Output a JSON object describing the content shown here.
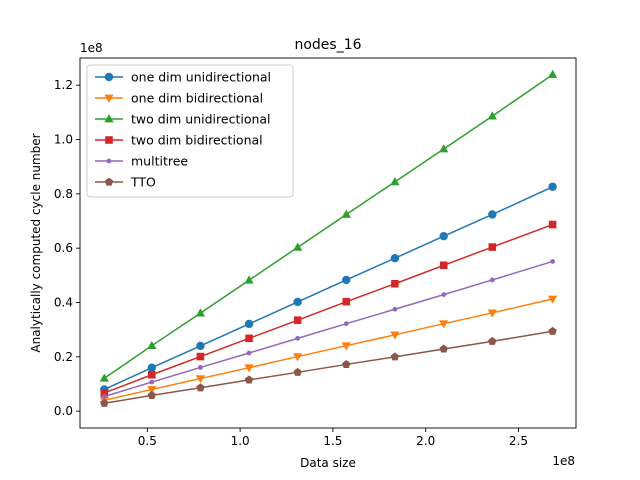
{
  "chart_data": {
    "type": "line",
    "title": "nodes_16",
    "xlabel": "Data size",
    "ylabel": "Analytically computed cycle number",
    "x_offset_label": "1e8",
    "y_offset_label": "1e8",
    "x_scale": 100000000,
    "y_scale": 100000000,
    "xlim": [
      0.137,
      2.81
    ],
    "ylim": [
      -0.062,
      1.3
    ],
    "x_ticks": [
      0.5,
      1.0,
      1.5,
      2.0,
      2.5
    ],
    "x_tick_labels": [
      "0.5",
      "1.0",
      "1.5",
      "2.0",
      "2.5"
    ],
    "y_ticks": [
      0.0,
      0.2,
      0.4,
      0.6,
      0.8,
      1.0,
      1.2
    ],
    "y_tick_labels": [
      "0.0",
      "0.2",
      "0.4",
      "0.6",
      "0.8",
      "1.0",
      "1.2"
    ],
    "grid": false,
    "legend_position": "top-left",
    "x": [
      0.268,
      0.524,
      0.786,
      1.048,
      1.31,
      1.572,
      1.834,
      2.097,
      2.359,
      2.684
    ],
    "series": [
      {
        "name": "one dim unidirectional",
        "color": "#1f77b4",
        "marker": "circle",
        "values": [
          0.08,
          0.16,
          0.24,
          0.321,
          0.402,
          0.483,
          0.563,
          0.644,
          0.724,
          0.826
        ]
      },
      {
        "name": "one dim bidirectional",
        "color": "#ff7f0e",
        "marker": "triangle-down",
        "values": [
          0.04,
          0.08,
          0.12,
          0.16,
          0.201,
          0.241,
          0.281,
          0.322,
          0.362,
          0.413
        ]
      },
      {
        "name": "two dim unidirectional",
        "color": "#2ca02c",
        "marker": "triangle-up",
        "values": [
          0.121,
          0.241,
          0.361,
          0.482,
          0.603,
          0.724,
          0.844,
          0.965,
          1.086,
          1.239
        ]
      },
      {
        "name": "two dim bidirectional",
        "color": "#d62728",
        "marker": "square",
        "values": [
          0.067,
          0.134,
          0.201,
          0.268,
          0.335,
          0.403,
          0.469,
          0.537,
          0.604,
          0.687
        ]
      },
      {
        "name": "multitree",
        "color": "#9467bd",
        "marker": "point",
        "values": [
          0.054,
          0.107,
          0.161,
          0.214,
          0.268,
          0.322,
          0.375,
          0.429,
          0.483,
          0.551
        ]
      },
      {
        "name": "TTO",
        "color": "#8c564b",
        "marker": "pentagon",
        "values": [
          0.029,
          0.058,
          0.086,
          0.115,
          0.143,
          0.172,
          0.2,
          0.229,
          0.257,
          0.294
        ]
      }
    ]
  }
}
